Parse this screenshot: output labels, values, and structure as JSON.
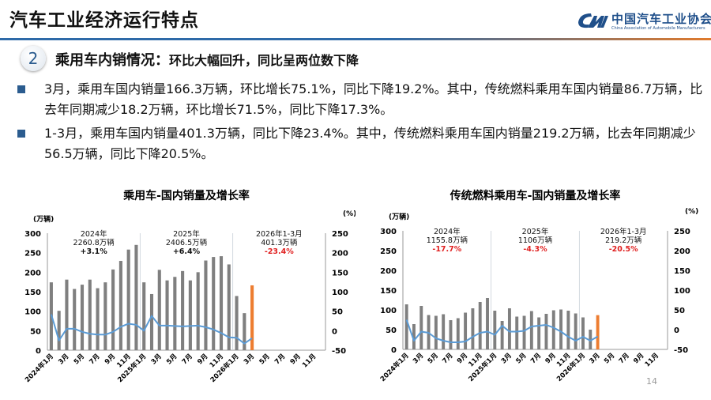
{
  "header": {
    "title": "汽车工业经济运行特点",
    "logo": {
      "cn": "中国汽车工业协会",
      "en": "China Association of Automobile Manufacturers"
    }
  },
  "section": {
    "number": "2",
    "title_bold": "乘用车内销情况：",
    "title_rest": "环比大幅回升，同比呈两位数下降"
  },
  "bullets": [
    "3月，乘用车国内销量166.3万辆，环比增长75.1%，同比下降19.2%。其中，传统燃料乘用车国内销量86.7万辆，比去年同期减少18.2万辆，环比增长71.5%，同比下降17.3%。",
    "1-3月，乘用车国内销量401.3万辆，同比下降23.4%。其中，传统燃料乘用车国内销量219.2万辆，比去年同期减少56.5万辆，同比下降20.5%。"
  ],
  "page_number": "14",
  "colors": {
    "bar": "#7f7f7f",
    "highlight_bar": "#ed7d31",
    "line": "#5b9bd5",
    "negative_text": "#e02020",
    "header_blue": "#2e6aa8",
    "header_orange": "#e07a2c"
  },
  "chart_data": [
    {
      "type": "bar+line",
      "title": "乘用车-国内销量及增长率",
      "ylabel_left": "(万辆)",
      "ylabel_right": "(%)",
      "ylim_left": [
        0,
        300
      ],
      "ylim_right": [
        -50,
        250
      ],
      "yticks_left": [
        "0",
        "50",
        "100",
        "150",
        "200",
        "250",
        "300"
      ],
      "yticks_right": [
        "-50",
        "0",
        "50",
        "100",
        "150",
        "200",
        "250"
      ],
      "xtick_labels": [
        "2024年1月",
        "3月",
        "5月",
        "7月",
        "9月",
        "11月",
        "2025年1月",
        "3月",
        "5月",
        "7月",
        "9月",
        "11月",
        "2026年1月",
        "3月",
        "5月",
        "7月",
        "9月",
        "11月"
      ],
      "slots": 36,
      "annotations": [
        {
          "lines": [
            "2024年",
            "2260.8万辆",
            "+3.1%"
          ],
          "neg": false
        },
        {
          "lines": [
            "2025年",
            "2406.5万辆",
            "+6.4%"
          ],
          "neg": false
        },
        {
          "lines": [
            "2026年1-3月",
            "401.3万辆",
            "-23.4%"
          ],
          "neg": true
        }
      ],
      "bars": [
        174,
        101,
        181,
        157,
        168,
        181,
        159,
        174,
        207,
        229,
        258,
        270,
        174,
        144,
        206,
        179,
        188,
        203,
        179,
        200,
        230,
        239,
        241,
        220,
        139,
        95,
        166.3
      ],
      "growth": [
        42,
        -25,
        5,
        5,
        -3,
        -8,
        -10,
        -10,
        -3,
        10,
        18,
        15,
        0,
        38,
        13,
        13,
        12,
        11,
        12,
        13,
        9,
        3,
        -6,
        -17,
        -18,
        -33,
        -19.2
      ],
      "highlight_index": 26,
      "grid": false
    },
    {
      "type": "bar+line",
      "title": "传统燃料乘用车-国内销量及增长率",
      "ylabel_left": "(万辆)",
      "ylabel_right": "(%)",
      "ylim_left": [
        0,
        300
      ],
      "ylim_right": [
        -50,
        250
      ],
      "yticks_left": [
        "0",
        "50",
        "100",
        "150",
        "200",
        "250",
        "300"
      ],
      "yticks_right": [
        "-50",
        "0",
        "50",
        "100",
        "150",
        "200",
        "250"
      ],
      "xtick_labels": [
        "2024年1月",
        "3月",
        "5月",
        "7月",
        "9月",
        "11月",
        "2025年1月",
        "3月",
        "5月",
        "7月",
        "9月",
        "11月",
        "2026年1月",
        "3月",
        "5月",
        "7月",
        "9月",
        "11月"
      ],
      "slots": 36,
      "annotations": [
        {
          "lines": [
            "2024年",
            "1155.8万辆",
            "-17.7%"
          ],
          "neg": true
        },
        {
          "lines": [
            "2025年",
            "1106万辆",
            "-4.3%"
          ],
          "neg": true
        },
        {
          "lines": [
            "2026年1-3月",
            "219.2万辆",
            "-20.5%"
          ],
          "neg": true
        }
      ],
      "bars": [
        114,
        64,
        110,
        87,
        85,
        89,
        74,
        79,
        93,
        104,
        120,
        130,
        98,
        72,
        104,
        83,
        85,
        97,
        81,
        90,
        99,
        101,
        98,
        91,
        81,
        50,
        86.7
      ],
      "growth": [
        25,
        -28,
        -5,
        -8,
        -22,
        -28,
        -32,
        -32,
        -30,
        -18,
        -8,
        -5,
        -13,
        10,
        -5,
        -5,
        -3,
        8,
        10,
        12,
        5,
        -5,
        -18,
        -28,
        -18,
        -28,
        -17.3
      ],
      "highlight_index": 26,
      "grid": false
    }
  ]
}
